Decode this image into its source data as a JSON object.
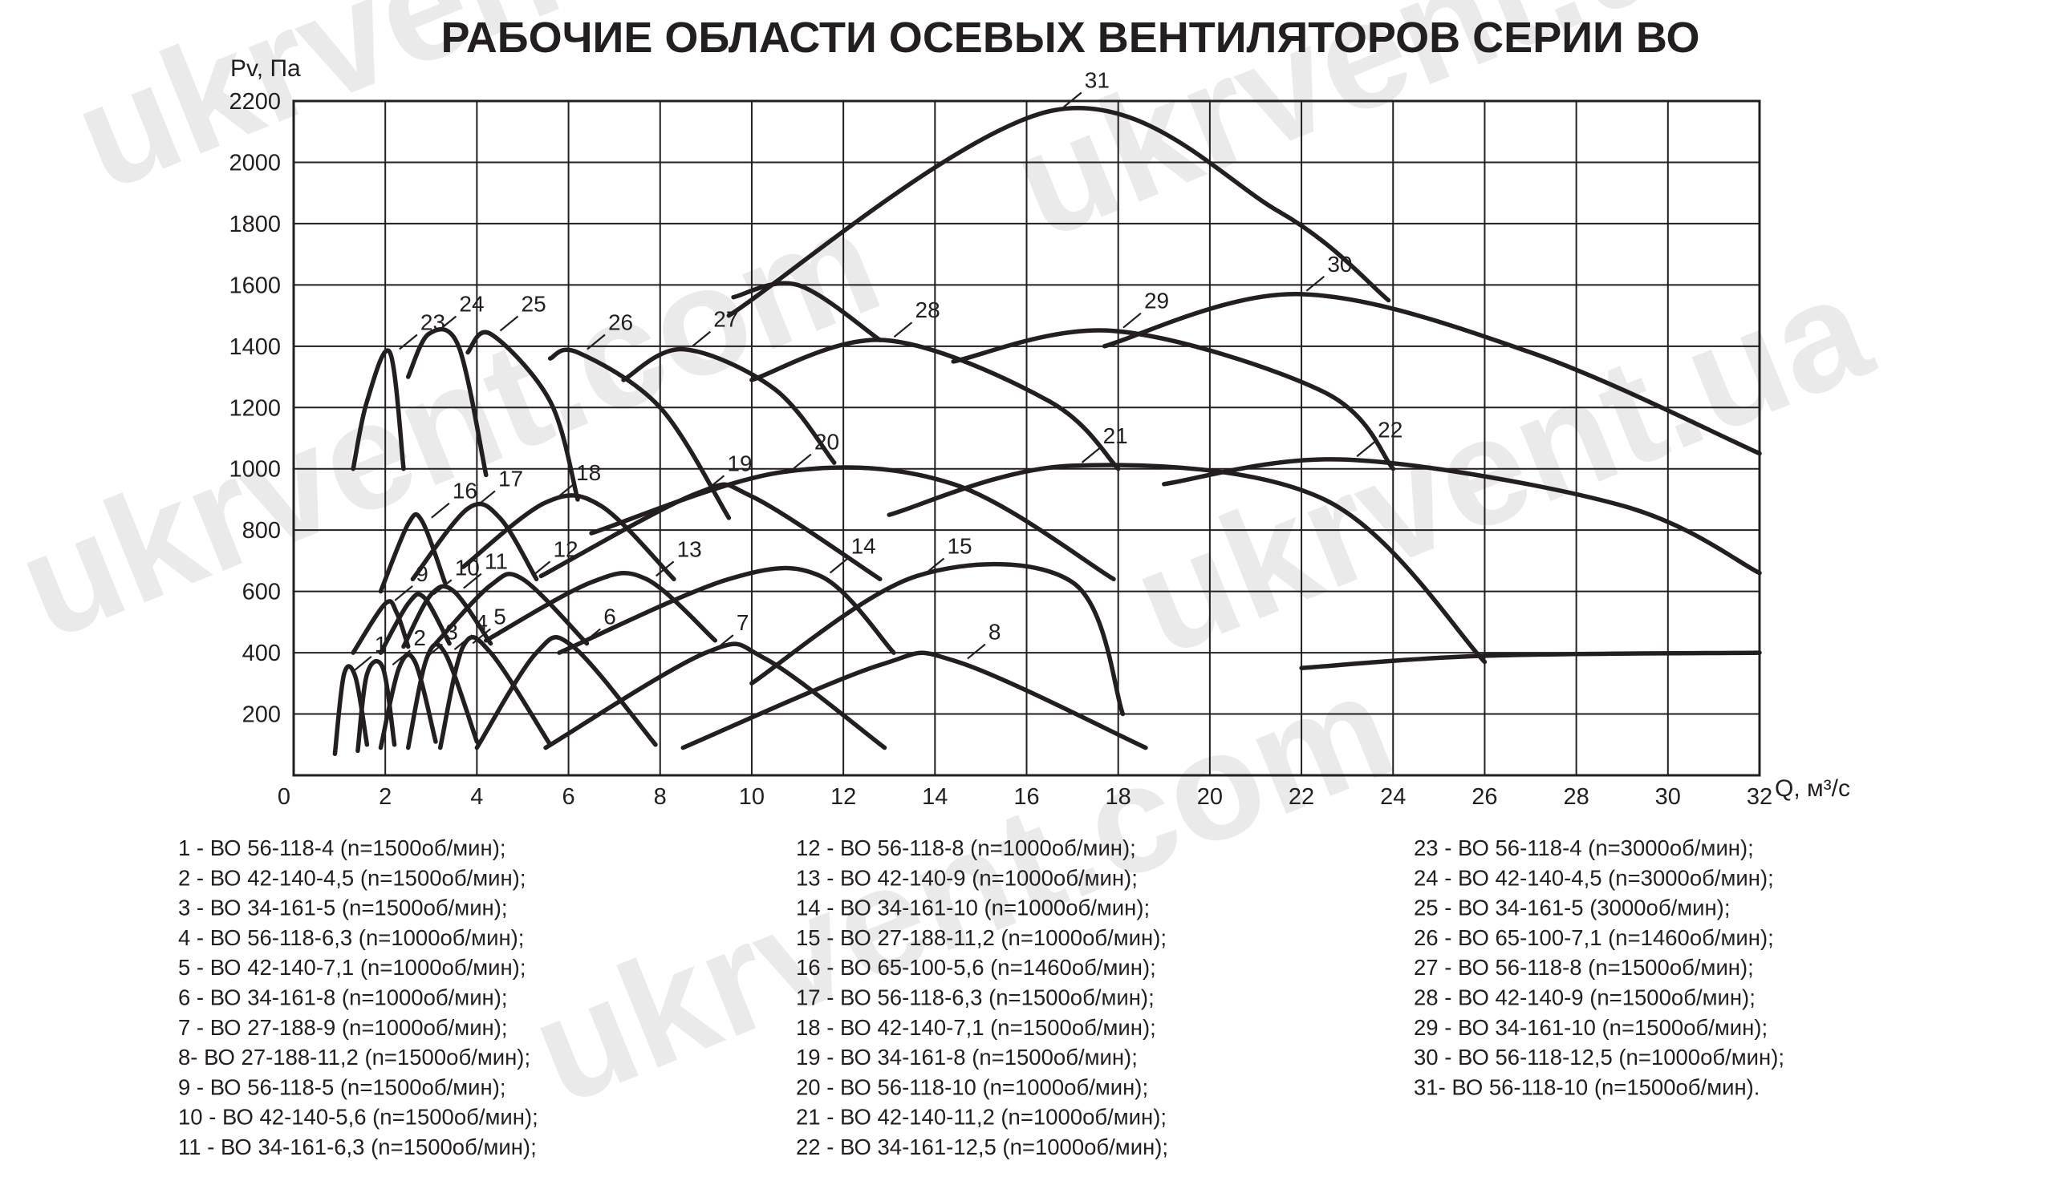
{
  "chart_data": {
    "type": "line",
    "title": "РАБОЧИЕ ОБЛАСТИ ОСЕВЫХ ВЕНТИЛЯТОРОВ СЕРИИ ВО",
    "xlabel": "Q, м³/с",
    "ylabel": "Pv, Па",
    "xlim": [
      0,
      32
    ],
    "ylim": [
      0,
      2200
    ],
    "xticks": [
      0,
      2,
      4,
      6,
      8,
      10,
      12,
      14,
      16,
      18,
      20,
      22,
      24,
      26,
      28,
      30,
      32
    ],
    "yticks": [
      200,
      400,
      600,
      800,
      1000,
      1200,
      1400,
      1600,
      1800,
      2000,
      2200
    ],
    "grid": true,
    "series": [
      {
        "name": "1",
        "x": [
          0.9,
          1.1,
          1.35,
          1.6
        ],
        "y": [
          70,
          330,
          320,
          100
        ]
      },
      {
        "name": "2",
        "x": [
          1.4,
          1.6,
          1.95,
          2.2
        ],
        "y": [
          80,
          330,
          350,
          100
        ]
      },
      {
        "name": "3",
        "x": [
          1.9,
          2.3,
          2.65,
          3.1
        ],
        "y": [
          90,
          350,
          370,
          110
        ]
      },
      {
        "name": "4",
        "x": [
          2.5,
          2.9,
          3.3,
          4.0
        ],
        "y": [
          90,
          380,
          400,
          110
        ]
      },
      {
        "name": "5",
        "x": [
          3.2,
          3.7,
          4.3,
          5.6
        ],
        "y": [
          90,
          420,
          400,
          100
        ]
      },
      {
        "name": "6",
        "x": [
          4.0,
          5.3,
          6.1,
          7.9
        ],
        "y": [
          90,
          400,
          420,
          100
        ]
      },
      {
        "name": "7",
        "x": [
          5.5,
          9.0,
          10.3,
          12.9
        ],
        "y": [
          90,
          400,
          380,
          90
        ]
      },
      {
        "name": "8",
        "x": [
          8.5,
          12.8,
          14.5,
          18.6
        ],
        "y": [
          90,
          360,
          370,
          90
        ]
      },
      {
        "name": "9",
        "x": [
          1.3,
          2.0,
          2.25,
          2.5
        ],
        "y": [
          400,
          560,
          530,
          420
        ]
      },
      {
        "name": "10",
        "x": [
          1.9,
          2.5,
          2.85,
          3.4
        ],
        "y": [
          400,
          560,
          580,
          430
        ]
      },
      {
        "name": "11",
        "x": [
          2.4,
          3.0,
          3.5,
          4.3
        ],
        "y": [
          420,
          590,
          600,
          430
        ]
      },
      {
        "name": "12",
        "x": [
          3.1,
          4.3,
          5.0,
          6.4
        ],
        "y": [
          430,
          620,
          640,
          430
        ]
      },
      {
        "name": "13",
        "x": [
          4.2,
          6.5,
          7.7,
          9.2
        ],
        "y": [
          440,
          630,
          640,
          440
        ]
      },
      {
        "name": "14",
        "x": [
          5.8,
          9.5,
          11.5,
          13.1
        ],
        "y": [
          400,
          640,
          650,
          400
        ]
      },
      {
        "name": "15",
        "x": [
          10.0,
          13.6,
          17.0,
          18.1
        ],
        "y": [
          300,
          650,
          630,
          200
        ]
      },
      {
        "name": "16",
        "x": [
          1.9,
          2.5,
          2.8,
          3.3
        ],
        "y": [
          600,
          820,
          830,
          630
        ]
      },
      {
        "name": "17",
        "x": [
          2.6,
          3.8,
          4.5,
          5.3
        ],
        "y": [
          640,
          870,
          840,
          640
        ]
      },
      {
        "name": "18",
        "x": [
          3.7,
          5.5,
          6.7,
          8.3
        ],
        "y": [
          680,
          890,
          880,
          640
        ]
      },
      {
        "name": "19",
        "x": [
          5.4,
          8.8,
          10.0,
          12.8
        ],
        "y": [
          650,
          920,
          910,
          640
        ]
      },
      {
        "name": "20",
        "x": [
          6.5,
          10.7,
          14.4,
          17.9
        ],
        "y": [
          790,
          990,
          950,
          640
        ]
      },
      {
        "name": "21",
        "x": [
          13.0,
          17.0,
          22.5,
          26.0
        ],
        "y": [
          850,
          1010,
          900,
          370
        ]
      },
      {
        "name": "22",
        "x": [
          19.0,
          23.0,
          29.0,
          32.0
        ],
        "y": [
          950,
          1030,
          880,
          660
        ]
      },
      {
        "name": "23",
        "x": [
          1.3,
          1.6,
          2.1,
          2.4
        ],
        "y": [
          1000,
          1220,
          1380,
          1000
        ]
      },
      {
        "name": "24",
        "x": [
          2.5,
          2.95,
          3.6,
          4.2
        ],
        "y": [
          1300,
          1440,
          1400,
          980
        ]
      },
      {
        "name": "25",
        "x": [
          3.8,
          4.3,
          5.6,
          6.2
        ],
        "y": [
          1380,
          1440,
          1220,
          900
        ]
      },
      {
        "name": "26",
        "x": [
          5.6,
          6.2,
          8.0,
          9.5
        ],
        "y": [
          1360,
          1380,
          1200,
          840
        ]
      },
      {
        "name": "27",
        "x": [
          7.2,
          8.5,
          10.5,
          11.8
        ],
        "y": [
          1290,
          1390,
          1260,
          1020
        ]
      },
      {
        "name": "28",
        "x": [
          10.0,
          12.9,
          16.5,
          18.0
        ],
        "y": [
          1290,
          1420,
          1220,
          1000
        ]
      },
      {
        "name": "29",
        "x": [
          14.4,
          17.9,
          22.5,
          24.0
        ],
        "y": [
          1350,
          1450,
          1250,
          1000
        ]
      },
      {
        "name": "30",
        "x": [
          17.7,
          21.9,
          27.0,
          32.0
        ],
        "y": [
          1400,
          1570,
          1380,
          1050
        ]
      },
      {
        "name": "31",
        "x": [
          9.5,
          16.6,
          21.5,
          23.9
        ],
        "y": [
          1500,
          2170,
          1840,
          1550
        ]
      },
      {
        "name": "27-extra",
        "x": [
          9.6,
          11.0,
          12.8
        ],
        "y": [
          1560,
          1600,
          1420
        ]
      },
      {
        "name": "30-lower",
        "x": [
          22.0,
          26.0,
          32.0
        ],
        "y": [
          350,
          390,
          400
        ]
      }
    ],
    "legend": [
      "1 - ВО 56-118-4 (n=1500об/мин);",
      "2 - ВО 42-140-4,5 (n=1500об/мин);",
      "3 - ВО 34-161-5 (n=1500об/мин);",
      "4 - ВО 56-118-6,3 (n=1000об/мин);",
      "5 - ВО 42-140-7,1 (n=1000об/мин);",
      "6 - ВО 34-161-8 (n=1000об/мин);",
      "7 - ВО 27-188-9 (n=1000об/мин);",
      "8- ВО 27-188-11,2 (n=1500об/мин);",
      "9 - ВО 56-118-5 (n=1500об/мин);",
      "10 - ВО 42-140-5,6 (n=1500об/мин);",
      "11 - ВО 34-161-6,3 (n=1500об/мин);",
      "12 - ВО 56-118-8 (n=1000об/мин);",
      "13 - ВО 42-140-9 (n=1000об/мин);",
      "14 - ВО 34-161-10 (n=1000об/мин);",
      "15 - ВО 27-188-11,2 (n=1000об/мин);",
      "16 - ВО 65-100-5,6 (n=1460об/мин);",
      "17 - ВО 56-118-6,3 (n=1500об/мин);",
      "18 - ВО 42-140-7,1 (n=1500об/мин);",
      "19 - ВО 34-161-8 (n=1500об/мин);",
      "20 - ВО 56-118-10 (n=1000об/мин);",
      "21 - ВО 42-140-11,2 (n=1000об/мин);",
      "22 - ВО 34-161-12,5 (n=1000об/мин);",
      "23 - ВО 56-118-4 (n=3000об/мин);",
      "24 - ВО 42-140-4,5 (n=3000об/мин);",
      "25 - ВО 34-161-5 (3000об/мин);",
      "26 - ВО 65-100-7,1 (n=1460об/мин);",
      "27 - ВО 56-118-8 (n=1500об/мин);",
      "28 - ВО 42-140-9 (n=1500об/мин);",
      "29 - ВО 34-161-10 (n=1500об/мин);",
      "30 - ВО 56-118-12,5 (n=1000об/мин);",
      "31- ВО 56-118-10 (n=1500об/мин)."
    ],
    "watermarks": [
      "ukrvent.com",
      "ukrvent.ua",
      "ukrvent.com",
      "ukrvent.ua",
      "ukrvent.com"
    ],
    "colors": {
      "ink": "#231f20",
      "watermark": "#d9d9d9"
    }
  }
}
